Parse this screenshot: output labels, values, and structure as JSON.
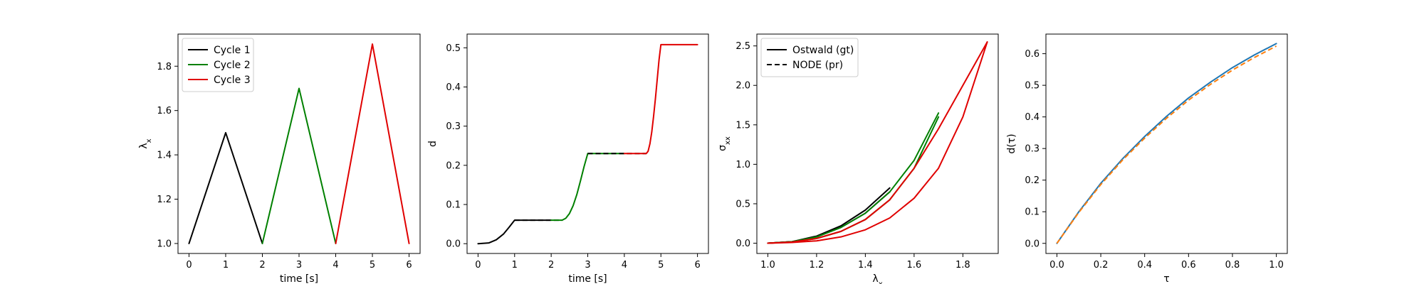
{
  "colors": {
    "cycle1": "#000000",
    "cycle2": "#008000",
    "cycle3": "#e00000",
    "blue": "#1f77b4",
    "orange": "#ff7f0e",
    "axes": "#000000"
  },
  "chart_data": [
    {
      "type": "line",
      "xlabel": "time [s]",
      "ylabel": "λ",
      "ylabel_sub": "x",
      "xlim": [
        -0.3,
        6.3
      ],
      "ylim": [
        0.955,
        1.945
      ],
      "xticks": [
        0,
        1,
        2,
        3,
        4,
        5,
        6
      ],
      "yticks": [
        1.0,
        1.2,
        1.4,
        1.6,
        1.8
      ],
      "ytick_labels": [
        "1.0",
        "1.2",
        "1.4",
        "1.6",
        "1.8"
      ],
      "legend": {
        "position": "top-left",
        "entries": [
          {
            "label": "Cycle 1",
            "color": "#000000",
            "dash": "solid"
          },
          {
            "label": "Cycle 2",
            "color": "#008000",
            "dash": "solid"
          },
          {
            "label": "Cycle 3",
            "color": "#e00000",
            "dash": "solid"
          }
        ]
      },
      "series": [
        {
          "name": "Cycle 1",
          "color": "#000000",
          "dash": "solid",
          "x": [
            0,
            1,
            2
          ],
          "y": [
            1.0,
            1.5,
            1.0
          ]
        },
        {
          "name": "Cycle 2",
          "color": "#008000",
          "dash": "solid",
          "x": [
            2,
            3,
            4
          ],
          "y": [
            1.0,
            1.7,
            1.0
          ]
        },
        {
          "name": "Cycle 3",
          "color": "#e00000",
          "dash": "solid",
          "x": [
            4,
            5,
            6
          ],
          "y": [
            1.0,
            1.9,
            1.0
          ]
        }
      ]
    },
    {
      "type": "line",
      "xlabel": "time [s]",
      "ylabel": "d",
      "xlim": [
        -0.3,
        6.3
      ],
      "ylim": [
        -0.025,
        0.535
      ],
      "xticks": [
        0,
        1,
        2,
        3,
        4,
        5,
        6
      ],
      "yticks": [
        0.0,
        0.1,
        0.2,
        0.3,
        0.4,
        0.5
      ],
      "ytick_labels": [
        "0.0",
        "0.1",
        "0.2",
        "0.3",
        "0.4",
        "0.5"
      ],
      "series": [
        {
          "color": "#000000",
          "dash": "solid",
          "x": [
            0,
            0.3,
            0.5,
            0.7,
            0.85,
            1.0,
            1.5,
            2.0
          ],
          "y": [
            0.0,
            0.002,
            0.01,
            0.025,
            0.042,
            0.06,
            0.06,
            0.06
          ]
        },
        {
          "color": "#000000",
          "dash": "dashed",
          "x": [
            1.0,
            1.5,
            2.0,
            2.3
          ],
          "y": [
            0.06,
            0.06,
            0.06,
            0.06
          ]
        },
        {
          "color": "#008000",
          "dash": "solid",
          "x": [
            2.0,
            2.3,
            2.4,
            2.5,
            2.6,
            2.7,
            2.8,
            2.9,
            3.0,
            3.5,
            4.0
          ],
          "y": [
            0.06,
            0.06,
            0.065,
            0.077,
            0.097,
            0.125,
            0.16,
            0.197,
            0.23,
            0.23,
            0.23
          ]
        },
        {
          "color": "#000000",
          "dash": "dashed",
          "x": [
            3.0,
            3.5,
            4.0,
            4.6
          ],
          "y": [
            0.23,
            0.23,
            0.23,
            0.23
          ]
        },
        {
          "color": "#e00000",
          "dash": "solid",
          "x": [
            4.0,
            4.6,
            4.65,
            4.7,
            4.75,
            4.8,
            4.85,
            4.9,
            4.95,
            5.0,
            5.5,
            6.0
          ],
          "y": [
            0.23,
            0.23,
            0.236,
            0.255,
            0.285,
            0.325,
            0.37,
            0.42,
            0.47,
            0.508,
            0.508,
            0.508
          ]
        }
      ]
    },
    {
      "type": "line",
      "xlabel": "λ",
      "xlabel_sub": "x",
      "ylabel": "σ",
      "ylabel_sub": "xx",
      "xlim": [
        0.955,
        1.945
      ],
      "ylim": [
        -0.13,
        2.65
      ],
      "xticks": [
        1.0,
        1.2,
        1.4,
        1.6,
        1.8
      ],
      "xtick_labels": [
        "1.0",
        "1.2",
        "1.4",
        "1.6",
        "1.8"
      ],
      "yticks": [
        0.0,
        0.5,
        1.0,
        1.5,
        2.0,
        2.5
      ],
      "ytick_labels": [
        "0.0",
        "0.5",
        "1.0",
        "1.5",
        "2.0",
        "2.5"
      ],
      "legend": {
        "position": "top-left",
        "entries": [
          {
            "label": "Ostwald (gt)",
            "color": "#000000",
            "dash": "solid"
          },
          {
            "label": "NODE (pr)",
            "color": "#000000",
            "dash": "dashed"
          }
        ]
      },
      "series": [
        {
          "color": "#000000",
          "dash": "solid",
          "x": [
            1.0,
            1.1,
            1.2,
            1.3,
            1.4,
            1.5
          ],
          "y": [
            0.0,
            0.02,
            0.09,
            0.22,
            0.42,
            0.7
          ]
        },
        {
          "color": "#000000",
          "dash": "solid",
          "x": [
            1.0,
            1.1,
            1.2,
            1.3,
            1.4,
            1.5
          ],
          "y": [
            0.0,
            0.02,
            0.08,
            0.2,
            0.38,
            0.65
          ]
        },
        {
          "color": "#008000",
          "dash": "solid",
          "x": [
            1.0,
            1.1,
            1.2,
            1.3,
            1.4,
            1.5,
            1.6,
            1.7
          ],
          "y": [
            0.0,
            0.02,
            0.08,
            0.2,
            0.38,
            0.65,
            1.05,
            1.65
          ]
        },
        {
          "color": "#008000",
          "dash": "solid",
          "x": [
            1.0,
            1.1,
            1.2,
            1.3,
            1.4,
            1.5,
            1.6,
            1.7
          ],
          "y": [
            0.0,
            0.015,
            0.06,
            0.15,
            0.3,
            0.55,
            0.95,
            1.6
          ]
        },
        {
          "color": "#e00000",
          "dash": "solid",
          "x": [
            1.0,
            1.1,
            1.2,
            1.3,
            1.4,
            1.5,
            1.6,
            1.7,
            1.8,
            1.9
          ],
          "y": [
            0.0,
            0.015,
            0.06,
            0.15,
            0.3,
            0.55,
            0.95,
            1.45,
            2.0,
            2.55
          ]
        },
        {
          "color": "#e00000",
          "dash": "solid",
          "x": [
            1.0,
            1.1,
            1.2,
            1.3,
            1.4,
            1.5,
            1.6,
            1.7,
            1.8,
            1.9
          ],
          "y": [
            0.0,
            0.01,
            0.03,
            0.08,
            0.17,
            0.32,
            0.57,
            0.95,
            1.6,
            2.55
          ]
        }
      ]
    },
    {
      "type": "line",
      "xlabel": "τ",
      "ylabel": "d(τ)",
      "xlim": [
        -0.05,
        1.05
      ],
      "ylim": [
        -0.032,
        0.662
      ],
      "xticks": [
        0.0,
        0.2,
        0.4,
        0.6,
        0.8,
        1.0
      ],
      "xtick_labels": [
        "0.0",
        "0.2",
        "0.4",
        "0.6",
        "0.8",
        "1.0"
      ],
      "yticks": [
        0.0,
        0.1,
        0.2,
        0.3,
        0.4,
        0.5,
        0.6
      ],
      "ytick_labels": [
        "0.0",
        "0.1",
        "0.2",
        "0.3",
        "0.4",
        "0.5",
        "0.6"
      ],
      "series": [
        {
          "color": "#1f77b4",
          "dash": "solid",
          "x": [
            0.0,
            0.1,
            0.2,
            0.3,
            0.4,
            0.5,
            0.6,
            0.7,
            0.8,
            0.9,
            1.0
          ],
          "y": [
            0.0,
            0.1,
            0.19,
            0.268,
            0.338,
            0.402,
            0.46,
            0.51,
            0.556,
            0.596,
            0.632
          ]
        },
        {
          "color": "#ff7f0e",
          "dash": "dashed",
          "x": [
            0.0,
            0.1,
            0.2,
            0.3,
            0.4,
            0.5,
            0.6,
            0.7,
            0.8,
            0.9,
            1.0
          ],
          "y": [
            0.0,
            0.098,
            0.186,
            0.264,
            0.333,
            0.396,
            0.453,
            0.503,
            0.548,
            0.588,
            0.624
          ]
        }
      ]
    }
  ]
}
